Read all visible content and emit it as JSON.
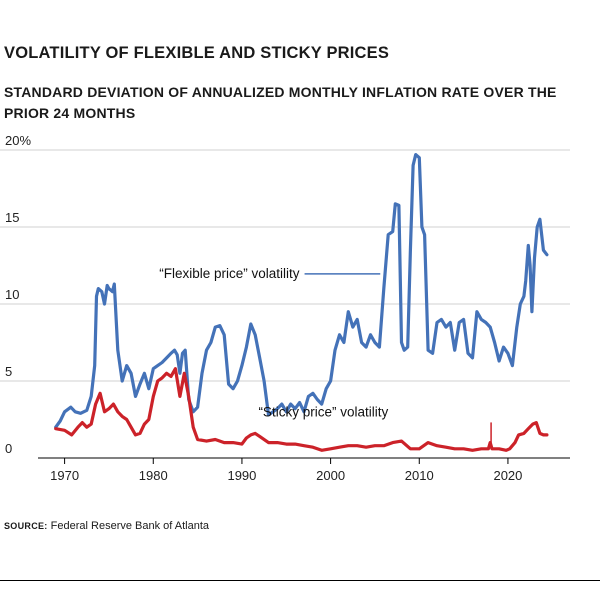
{
  "title": "VOLATILITY OF FLEXIBLE AND STICKY PRICES",
  "subtitle": "STANDARD DEVIATION OF ANNUALIZED MONTHLY INFLATION RATE OVER THE PRIOR 24 MONTHS",
  "source": {
    "label": "SOURCE:",
    "text": "Federal Reserve Bank of Atlanta"
  },
  "colors": {
    "flexible": "#4472b8",
    "sticky": "#cc2229",
    "grid": "#d0d0d0",
    "axis": "#000000"
  },
  "chart_data": {
    "type": "line",
    "title": "Volatility of flexible and sticky prices",
    "ylabel": "Standard deviation of annualized monthly inflation rate over the prior 24 months (%)",
    "xlim": [
      1967,
      2027
    ],
    "ylim": [
      0,
      20
    ],
    "x_ticks": [
      1970,
      1980,
      1990,
      2000,
      2010,
      2020
    ],
    "x_tick_labels": [
      "1970",
      "1980",
      "1990",
      "2000",
      "2010",
      "2020"
    ],
    "y_ticks": [
      0,
      5,
      10,
      15,
      20
    ],
    "y_tick_labels": [
      "0",
      "5",
      "10",
      "15",
      "20%"
    ],
    "series": [
      {
        "name": "“Flexible price” volatility",
        "color": "#4472b8",
        "annotation": "“Flexible price” volatility",
        "annotation_x": 1996.5,
        "annotation_y": 11.7,
        "x": [
          1969,
          1969.5,
          1970,
          1970.7,
          1971.2,
          1971.8,
          1972.5,
          1973.0,
          1973.4,
          1973.6,
          1973.8,
          1974.2,
          1974.5,
          1974.8,
          1975.0,
          1975.4,
          1975.6,
          1976.0,
          1976.5,
          1977.0,
          1977.5,
          1978.0,
          1978.5,
          1979.0,
          1979.5,
          1980.0,
          1980.5,
          1981.0,
          1981.5,
          1982.0,
          1982.4,
          1982.7,
          1983.0,
          1983.3,
          1983.6,
          1984.0,
          1984.5,
          1985.0,
          1985.5,
          1986.0,
          1986.5,
          1987.0,
          1987.5,
          1988.0,
          1988.5,
          1989.0,
          1989.5,
          1990.0,
          1990.5,
          1991.0,
          1991.5,
          1992.0,
          1992.5,
          1993.0,
          1993.5,
          1994.0,
          1994.5,
          1995.0,
          1995.5,
          1996.0,
          1996.5,
          1997.0,
          1997.5,
          1998.0,
          1998.5,
          1999.0,
          1999.5,
          2000.0,
          2000.5,
          2001.0,
          2001.5,
          2002.0,
          2002.5,
          2003.0,
          2003.5,
          2004.0,
          2004.5,
          2005.0,
          2005.5,
          2006.0,
          2006.5,
          2007.0,
          2007.3,
          2007.7,
          2008.0,
          2008.3,
          2008.7,
          2009.0,
          2009.3,
          2009.6,
          2010.0,
          2010.3,
          2010.6,
          2011.0,
          2011.5,
          2012.0,
          2012.5,
          2013.0,
          2013.5,
          2014.0,
          2014.5,
          2015.0,
          2015.5,
          2016.0,
          2016.5,
          2017.0,
          2017.5,
          2018.0,
          2018.5,
          2019.0,
          2019.5,
          2020.0,
          2020.5,
          2021.0,
          2021.4,
          2021.8,
          2022.0,
          2022.3,
          2022.5,
          2022.7,
          2023.0,
          2023.3,
          2023.6,
          2024.0,
          2024.4
        ],
        "values": [
          2.0,
          2.4,
          3.0,
          3.3,
          3.0,
          2.9,
          3.1,
          4.0,
          6.0,
          10.5,
          11.0,
          10.8,
          10.0,
          11.2,
          11.0,
          10.8,
          11.3,
          7.0,
          5.0,
          6.0,
          5.5,
          4.0,
          4.8,
          5.5,
          4.5,
          5.8,
          6.0,
          6.2,
          6.5,
          6.8,
          7.0,
          6.7,
          5.5,
          6.8,
          7.0,
          3.8,
          3.0,
          3.3,
          5.5,
          7.0,
          7.5,
          8.5,
          8.6,
          8.0,
          4.8,
          4.5,
          5.0,
          6.0,
          7.2,
          8.7,
          8.0,
          6.5,
          5.0,
          2.8,
          3.0,
          3.2,
          3.5,
          3.0,
          3.5,
          3.2,
          3.6,
          3.0,
          4.0,
          4.2,
          3.8,
          3.5,
          4.5,
          5.0,
          7.0,
          8.0,
          7.5,
          9.5,
          8.5,
          9.0,
          7.5,
          7.2,
          8.0,
          7.5,
          7.2,
          11.0,
          14.5,
          14.7,
          16.5,
          16.4,
          7.5,
          7.0,
          7.2,
          13.5,
          19.0,
          19.7,
          19.5,
          15.0,
          14.5,
          7.0,
          6.8,
          8.8,
          9.0,
          8.5,
          8.8,
          7.0,
          8.8,
          9.0,
          6.8,
          6.5,
          9.5,
          9.0,
          8.8,
          8.5,
          7.5,
          6.3,
          7.2,
          6.8,
          6.0,
          8.5,
          10.0,
          10.5,
          11.5,
          13.8,
          12.5,
          9.5,
          13.0,
          15.0,
          15.5,
          13.5,
          13.2
        ]
      },
      {
        "name": "“Sticky price” volatility",
        "color": "#cc2229",
        "annotation": "“Sticky price” volatility",
        "annotation_x": 2006.5,
        "annotation_y": 2.7,
        "x": [
          1969,
          1970,
          1970.8,
          1971.5,
          1972.0,
          1972.5,
          1973.0,
          1973.5,
          1974.0,
          1974.5,
          1975.0,
          1975.5,
          1976.0,
          1976.5,
          1977.0,
          1977.5,
          1978.0,
          1978.5,
          1979.0,
          1979.5,
          1980.0,
          1980.5,
          1981.0,
          1981.5,
          1982.0,
          1982.5,
          1983.0,
          1983.5,
          1984.0,
          1984.5,
          1985.0,
          1986.0,
          1987.0,
          1988.0,
          1989.0,
          1990.0,
          1990.5,
          1991.0,
          1991.5,
          1992.0,
          1993.0,
          1994.0,
          1995.0,
          1996.0,
          1997.0,
          1998.0,
          1999.0,
          2000.0,
          2001.0,
          2002.0,
          2003.0,
          2004.0,
          2005.0,
          2006.0,
          2007.0,
          2008.0,
          2009.0,
          2010.0,
          2011.0,
          2012.0,
          2013.0,
          2014.0,
          2015.0,
          2016.0,
          2017.0,
          2017.8,
          2018.0,
          2018.2,
          2019.0,
          2019.8,
          2020.2,
          2020.8,
          2021.2,
          2021.8,
          2022.3,
          2022.8,
          2023.2,
          2023.6,
          2024.0,
          2024.4
        ],
        "values": [
          1.9,
          1.8,
          1.5,
          2.0,
          2.3,
          2.0,
          2.2,
          3.5,
          4.2,
          3.0,
          3.2,
          3.5,
          3.0,
          2.7,
          2.5,
          2.0,
          1.5,
          1.6,
          2.2,
          2.5,
          4.0,
          5.0,
          5.2,
          5.5,
          5.3,
          5.8,
          4.0,
          5.5,
          4.0,
          2.0,
          1.2,
          1.1,
          1.2,
          1.0,
          1.0,
          0.9,
          1.3,
          1.5,
          1.6,
          1.4,
          1.0,
          1.0,
          0.9,
          0.9,
          0.8,
          0.7,
          0.5,
          0.6,
          0.7,
          0.8,
          0.8,
          0.7,
          0.8,
          0.8,
          1.0,
          1.1,
          0.6,
          0.6,
          1.0,
          0.8,
          0.7,
          0.6,
          0.6,
          0.5,
          0.6,
          0.6,
          1.0,
          0.6,
          0.6,
          0.5,
          0.6,
          1.0,
          1.5,
          1.6,
          1.9,
          2.2,
          2.3,
          1.6,
          1.5,
          1.5
        ]
      }
    ]
  }
}
